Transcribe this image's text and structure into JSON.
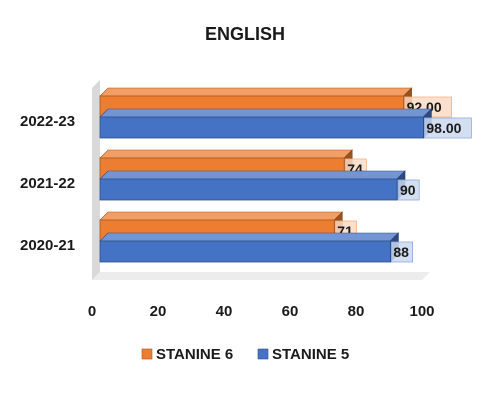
{
  "chart_data": {
    "type": "bar",
    "orientation": "horizontal",
    "three_d": true,
    "title": "ENGLISH",
    "categories": [
      "2022-23",
      "2021-22",
      "2020-21"
    ],
    "series": [
      {
        "name": "STANINE 6",
        "values": [
          92,
          74,
          71
        ],
        "labels": [
          "92.00",
          "74",
          "71"
        ],
        "color": "#ED7D31"
      },
      {
        "name": "STANINE 5",
        "values": [
          98,
          90,
          88
        ],
        "labels": [
          "98.00",
          "90",
          "88"
        ],
        "color": "#4472C4"
      }
    ],
    "xlim": [
      0,
      100
    ],
    "xticks": [
      "0",
      "20",
      "40",
      "60",
      "80",
      "100"
    ],
    "legend_position": "bottom",
    "grid": false
  }
}
